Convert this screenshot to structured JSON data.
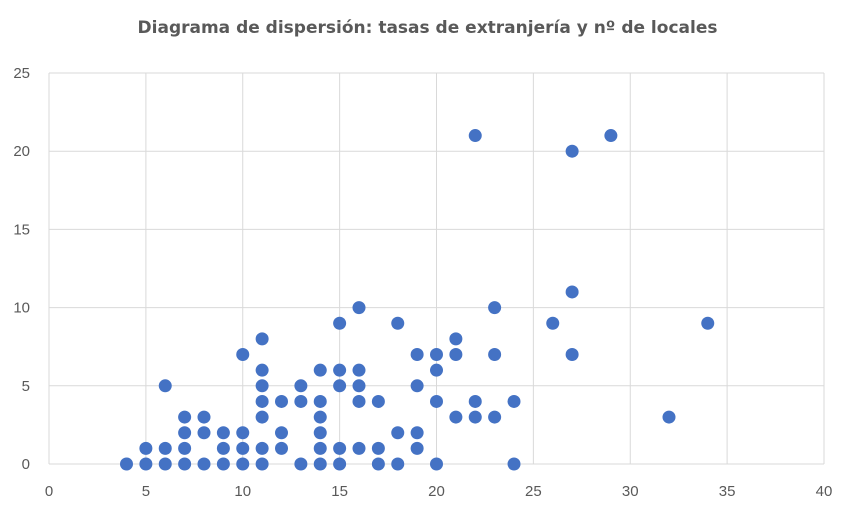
{
  "chart_data": {
    "type": "scatter",
    "title": "Diagrama de dispersión: tasas de extranjería y nº de locales",
    "xlabel": "",
    "ylabel": "",
    "xlim": [
      0,
      40
    ],
    "ylim": [
      0,
      25
    ],
    "x_ticks": [
      0,
      5,
      10,
      15,
      20,
      25,
      30,
      35,
      40
    ],
    "y_ticks": [
      0,
      5,
      10,
      15,
      20,
      25
    ],
    "grid": true,
    "legend": "none",
    "marker_color": "#4472C4",
    "gridline_color": "#d9d9d9",
    "points": [
      [
        4,
        0
      ],
      [
        5,
        0
      ],
      [
        5,
        1
      ],
      [
        6,
        0
      ],
      [
        6,
        1
      ],
      [
        6,
        5
      ],
      [
        7,
        0
      ],
      [
        7,
        1
      ],
      [
        7,
        2
      ],
      [
        7,
        3
      ],
      [
        8,
        0
      ],
      [
        8,
        2
      ],
      [
        8,
        3
      ],
      [
        9,
        0
      ],
      [
        9,
        1
      ],
      [
        9,
        2
      ],
      [
        10,
        0
      ],
      [
        10,
        1
      ],
      [
        10,
        2
      ],
      [
        10,
        7
      ],
      [
        11,
        0
      ],
      [
        11,
        1
      ],
      [
        11,
        3
      ],
      [
        11,
        4
      ],
      [
        11,
        5
      ],
      [
        11,
        6
      ],
      [
        11,
        8
      ],
      [
        12,
        1
      ],
      [
        12,
        2
      ],
      [
        12,
        4
      ],
      [
        13,
        0
      ],
      [
        13,
        4
      ],
      [
        13,
        5
      ],
      [
        14,
        0
      ],
      [
        14,
        1
      ],
      [
        14,
        2
      ],
      [
        14,
        3
      ],
      [
        14,
        4
      ],
      [
        14,
        6
      ],
      [
        15,
        0
      ],
      [
        15,
        1
      ],
      [
        15,
        5
      ],
      [
        15,
        6
      ],
      [
        15,
        9
      ],
      [
        16,
        1
      ],
      [
        16,
        4
      ],
      [
        16,
        5
      ],
      [
        16,
        6
      ],
      [
        16,
        10
      ],
      [
        17,
        0
      ],
      [
        17,
        1
      ],
      [
        17,
        4
      ],
      [
        18,
        0
      ],
      [
        18,
        2
      ],
      [
        18,
        9
      ],
      [
        19,
        1
      ],
      [
        19,
        2
      ],
      [
        19,
        5
      ],
      [
        19,
        7
      ],
      [
        20,
        0
      ],
      [
        20,
        4
      ],
      [
        20,
        6
      ],
      [
        20,
        7
      ],
      [
        21,
        3
      ],
      [
        21,
        7
      ],
      [
        21,
        8
      ],
      [
        22,
        3
      ],
      [
        22,
        4
      ],
      [
        22,
        21
      ],
      [
        23,
        3
      ],
      [
        23,
        7
      ],
      [
        23,
        10
      ],
      [
        24,
        0
      ],
      [
        24,
        4
      ],
      [
        26,
        9
      ],
      [
        27,
        7
      ],
      [
        27,
        11
      ],
      [
        27,
        20
      ],
      [
        29,
        21
      ],
      [
        32,
        3
      ],
      [
        34,
        9
      ]
    ]
  }
}
